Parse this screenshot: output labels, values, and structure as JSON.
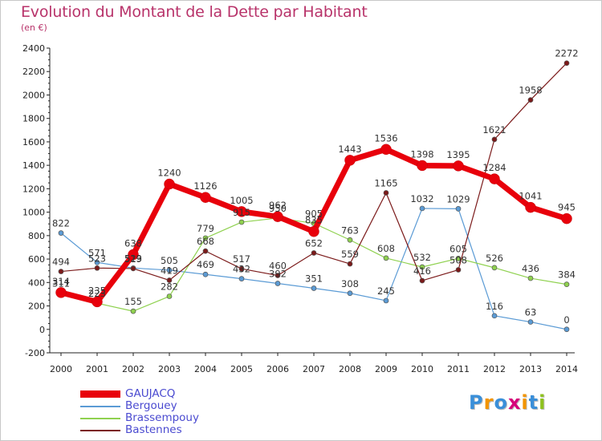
{
  "chart_data": {
    "type": "line",
    "title": "Evolution du Montant de la Dette par Habitant",
    "subtitle": "(en €)",
    "x": [
      "2000",
      "2001",
      "2002",
      "2003",
      "2004",
      "2005",
      "2006",
      "2007",
      "2008",
      "2009",
      "2010",
      "2011",
      "2012",
      "2013",
      "2014"
    ],
    "ylim": [
      -200,
      2400
    ],
    "yticks": [
      "-200",
      "0",
      "200",
      "400",
      "600",
      "800",
      "1000",
      "1200",
      "1400",
      "1600",
      "1800",
      "2000",
      "2200",
      "2400"
    ],
    "grid": false,
    "legend_position": "bottom-left",
    "series": [
      {
        "name": "GAUJACQ",
        "color": "#e8000b",
        "values": [
          314,
          235,
          638,
          1240,
          1126,
          1005,
          962,
          835,
          1443,
          1536,
          1398,
          1395,
          1284,
          1041,
          945
        ]
      },
      {
        "name": "Bergouey",
        "color": "#5b9bd5",
        "values": [
          822,
          571,
          523,
          505,
          469,
          432,
          392,
          351,
          308,
          245,
          1032,
          1029,
          116,
          63,
          0
        ]
      },
      {
        "name": "Brassempouy",
        "color": "#8fd14f",
        "values": [
          311,
          223,
          155,
          282,
          779,
          915,
          950,
          905,
          763,
          608,
          532,
          605,
          526,
          436,
          384
        ]
      },
      {
        "name": "Bastennes",
        "color": "#7b1a1a",
        "values": [
          494,
          523,
          519,
          419,
          668,
          517,
          460,
          652,
          559,
          1165,
          416,
          508,
          1621,
          1958,
          2272
        ]
      }
    ]
  },
  "logo": {
    "letters": [
      "P",
      "r",
      "o",
      "x",
      "i",
      "t",
      "i"
    ],
    "colors": [
      "#3a8fd9",
      "#f29400",
      "#3a8fd9",
      "#d6007a",
      "#f29400",
      "#3a8fd9",
      "#8fc21f"
    ]
  }
}
